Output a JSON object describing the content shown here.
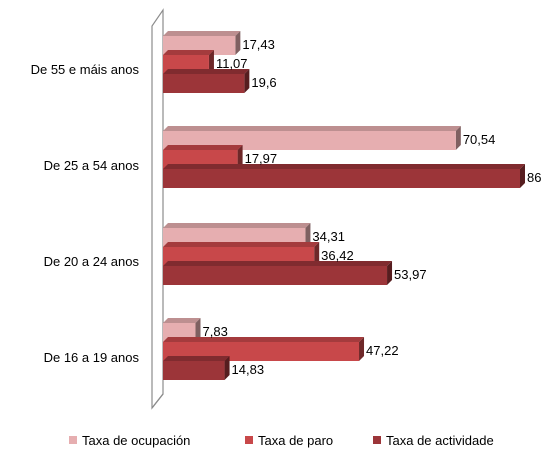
{
  "chart_data": {
    "type": "bar",
    "orientation": "horizontal",
    "title": "",
    "xlabel": "",
    "ylabel": "",
    "xlim": [
      0,
      90
    ],
    "grid": false,
    "legend_position": "bottom",
    "categories": [
      "De 55 e máis anos",
      "De 25 a 54 anos",
      "De 20 a 24 anos",
      "De 16 a 19 anos"
    ],
    "series": [
      {
        "name": "Taxa de ocupación",
        "color": "#e6aeb0",
        "values": [
          17.43,
          70.54,
          34.31,
          7.83
        ],
        "labels": [
          "17,43",
          "70,54",
          "34,31",
          "7,83"
        ]
      },
      {
        "name": "Taxa de paro",
        "color": "#c8484a",
        "values": [
          11.07,
          17.97,
          36.42,
          47.22
        ],
        "labels": [
          "11,07",
          "17,97",
          "36,42",
          "47,22"
        ]
      },
      {
        "name": "Taxa de actividade",
        "color": "#9c3539",
        "values": [
          19.6,
          86,
          53.97,
          14.83
        ],
        "labels": [
          "19,6",
          "86",
          "53,97",
          "14,83"
        ]
      }
    ]
  }
}
